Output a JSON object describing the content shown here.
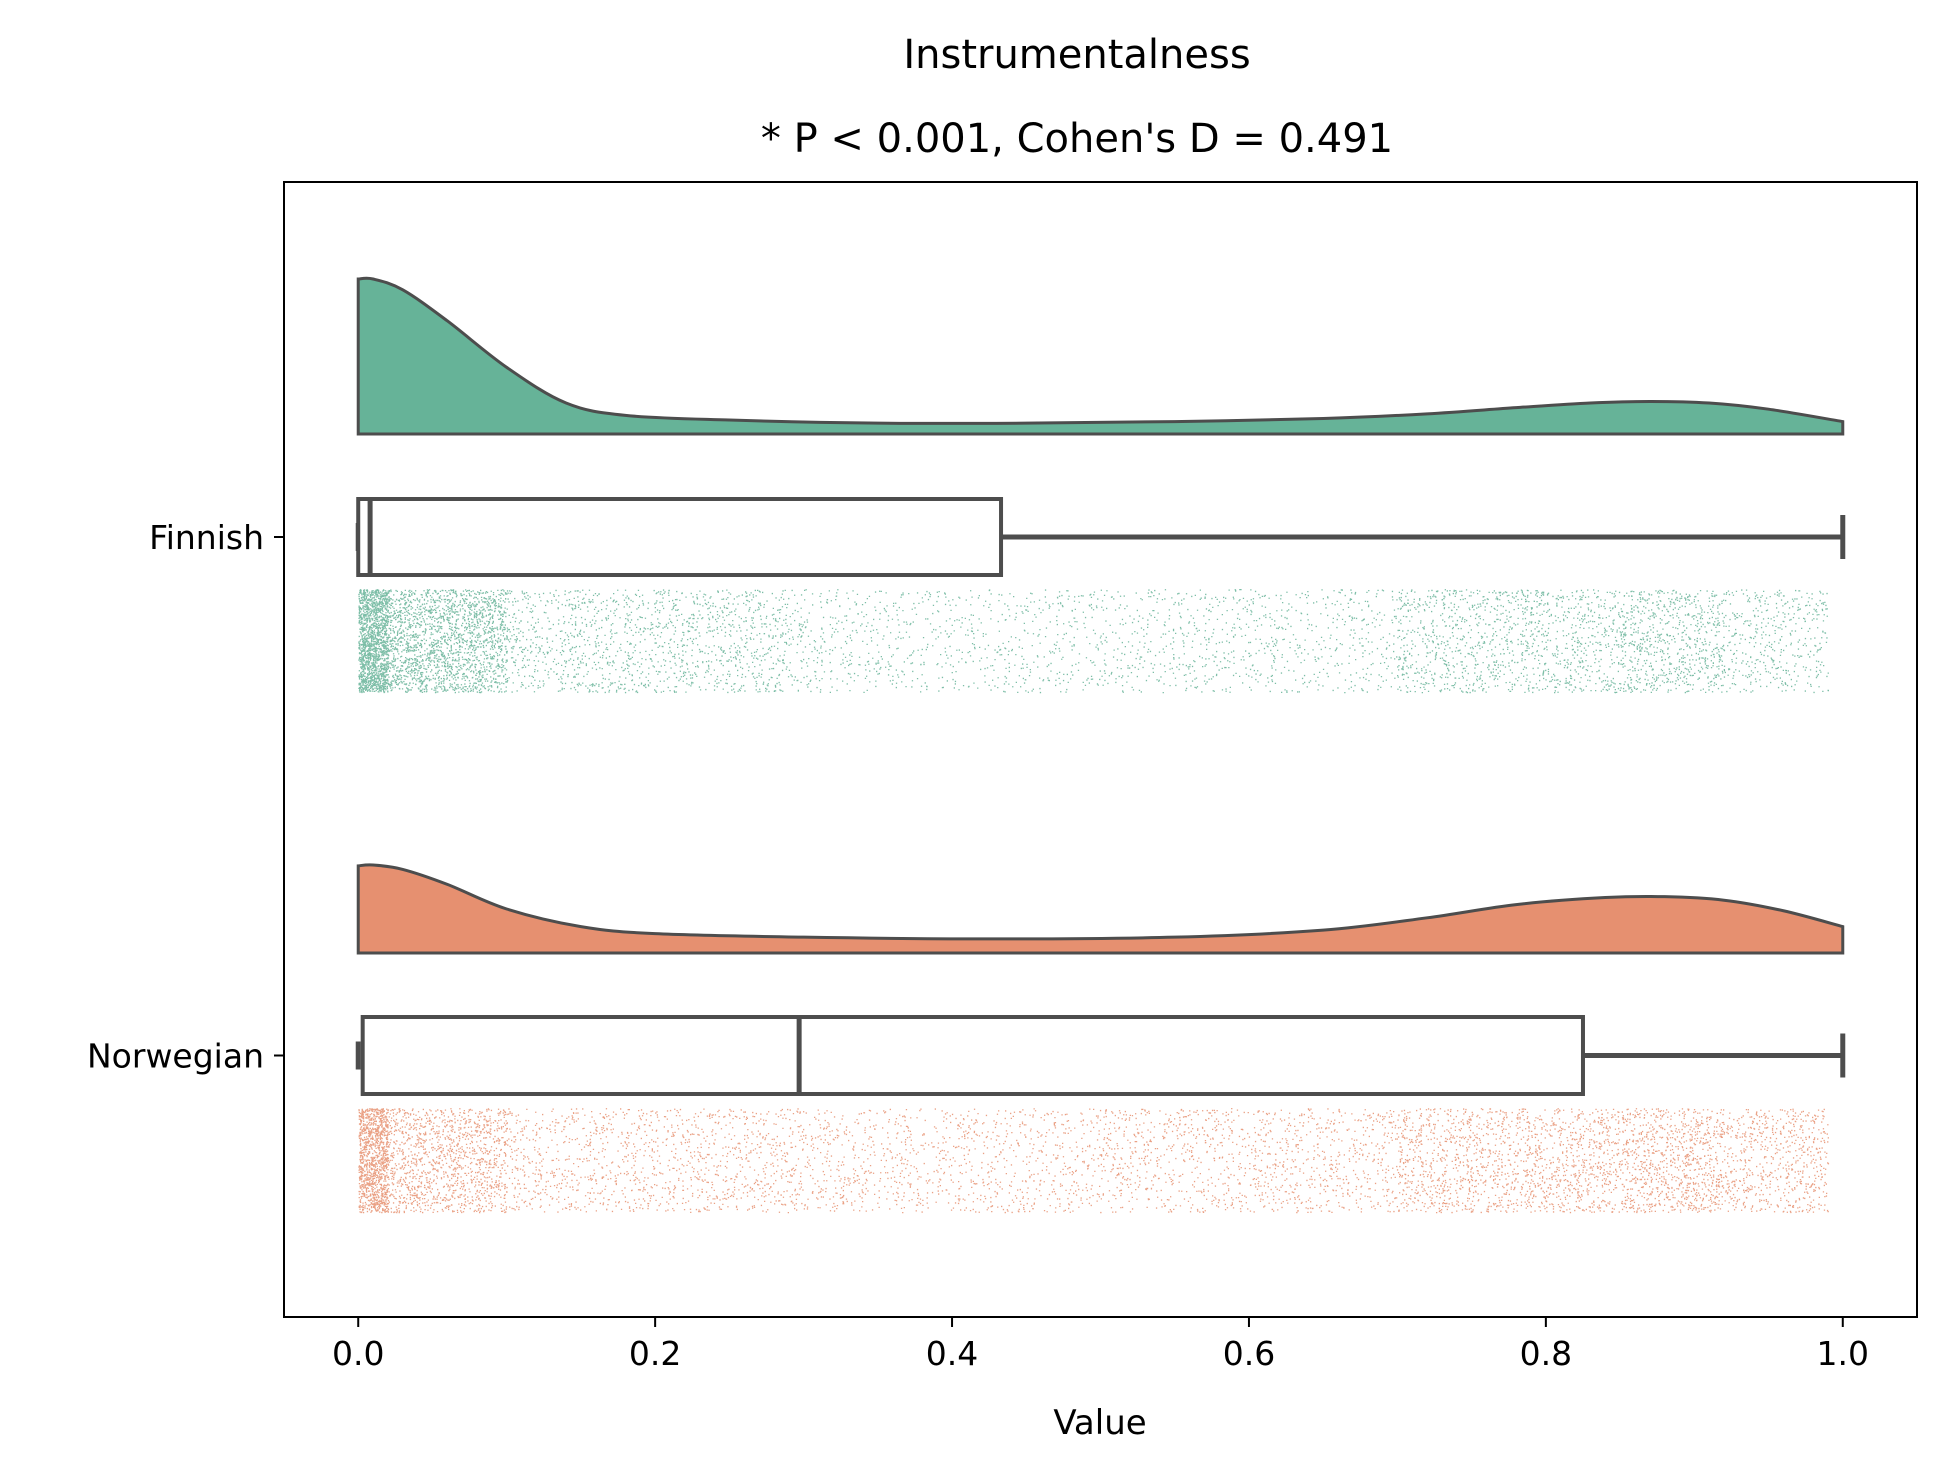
{
  "chart_data": {
    "type": "raincloud",
    "title": "Instrumentalness",
    "subtitle": "* P < 0.001, Cohen's D = 0.491",
    "xlabel": "Value",
    "ylabel": "",
    "xlim": [
      -0.05,
      1.05
    ],
    "x_ticks": [
      "0.0",
      "0.2",
      "0.4",
      "0.6",
      "0.8",
      "1.0"
    ],
    "x_tick_values": [
      0.0,
      0.2,
      0.4,
      0.6,
      0.8,
      1.0
    ],
    "grid": false,
    "legend": "none",
    "groups": [
      {
        "name": "Finnish",
        "color": "#66b398",
        "edge_color": "#4d4d4d",
        "box": {
          "whisker_low": 0.0,
          "q1": 0.0,
          "median": 0.008,
          "q3": 0.433,
          "whisker_high": 1.0
        },
        "density": {
          "x": [
            0.0,
            0.01,
            0.03,
            0.06,
            0.1,
            0.14,
            0.18,
            0.25,
            0.35,
            0.45,
            0.55,
            0.65,
            0.72,
            0.78,
            0.83,
            0.87,
            0.91,
            0.95,
            1.0
          ],
          "y": [
            1.0,
            1.0,
            0.93,
            0.73,
            0.43,
            0.2,
            0.12,
            0.09,
            0.07,
            0.07,
            0.08,
            0.1,
            0.13,
            0.17,
            0.2,
            0.21,
            0.2,
            0.16,
            0.08
          ]
        },
        "strip_profile": {
          "x": [
            0.0,
            0.02,
            0.1,
            0.3,
            0.5,
            0.7,
            0.85,
            0.92,
            0.99
          ],
          "weight": [
            40,
            12,
            3,
            1.2,
            1.0,
            1.4,
            3.5,
            3.0,
            1.0
          ]
        }
      },
      {
        "name": "Norwegian",
        "color": "#e69070",
        "edge_color": "#4d4d4d",
        "box": {
          "whisker_low": 0.0,
          "q1": 0.003,
          "median": 0.297,
          "q3": 0.825,
          "whisker_high": 1.0
        },
        "density": {
          "x": [
            0.0,
            0.01,
            0.03,
            0.06,
            0.1,
            0.15,
            0.2,
            0.3,
            0.42,
            0.55,
            0.65,
            0.72,
            0.78,
            0.84,
            0.88,
            0.92,
            0.96,
            1.0
          ],
          "y": [
            0.99,
            1.0,
            0.95,
            0.78,
            0.5,
            0.3,
            0.22,
            0.18,
            0.16,
            0.18,
            0.26,
            0.4,
            0.55,
            0.63,
            0.64,
            0.6,
            0.48,
            0.3
          ]
        },
        "strip_profile": {
          "x": [
            0.0,
            0.02,
            0.1,
            0.3,
            0.5,
            0.7,
            0.85,
            0.92,
            0.99
          ],
          "weight": [
            30,
            8,
            2.5,
            1.5,
            1.5,
            2.2,
            4.5,
            4.0,
            1.5
          ]
        }
      }
    ]
  }
}
